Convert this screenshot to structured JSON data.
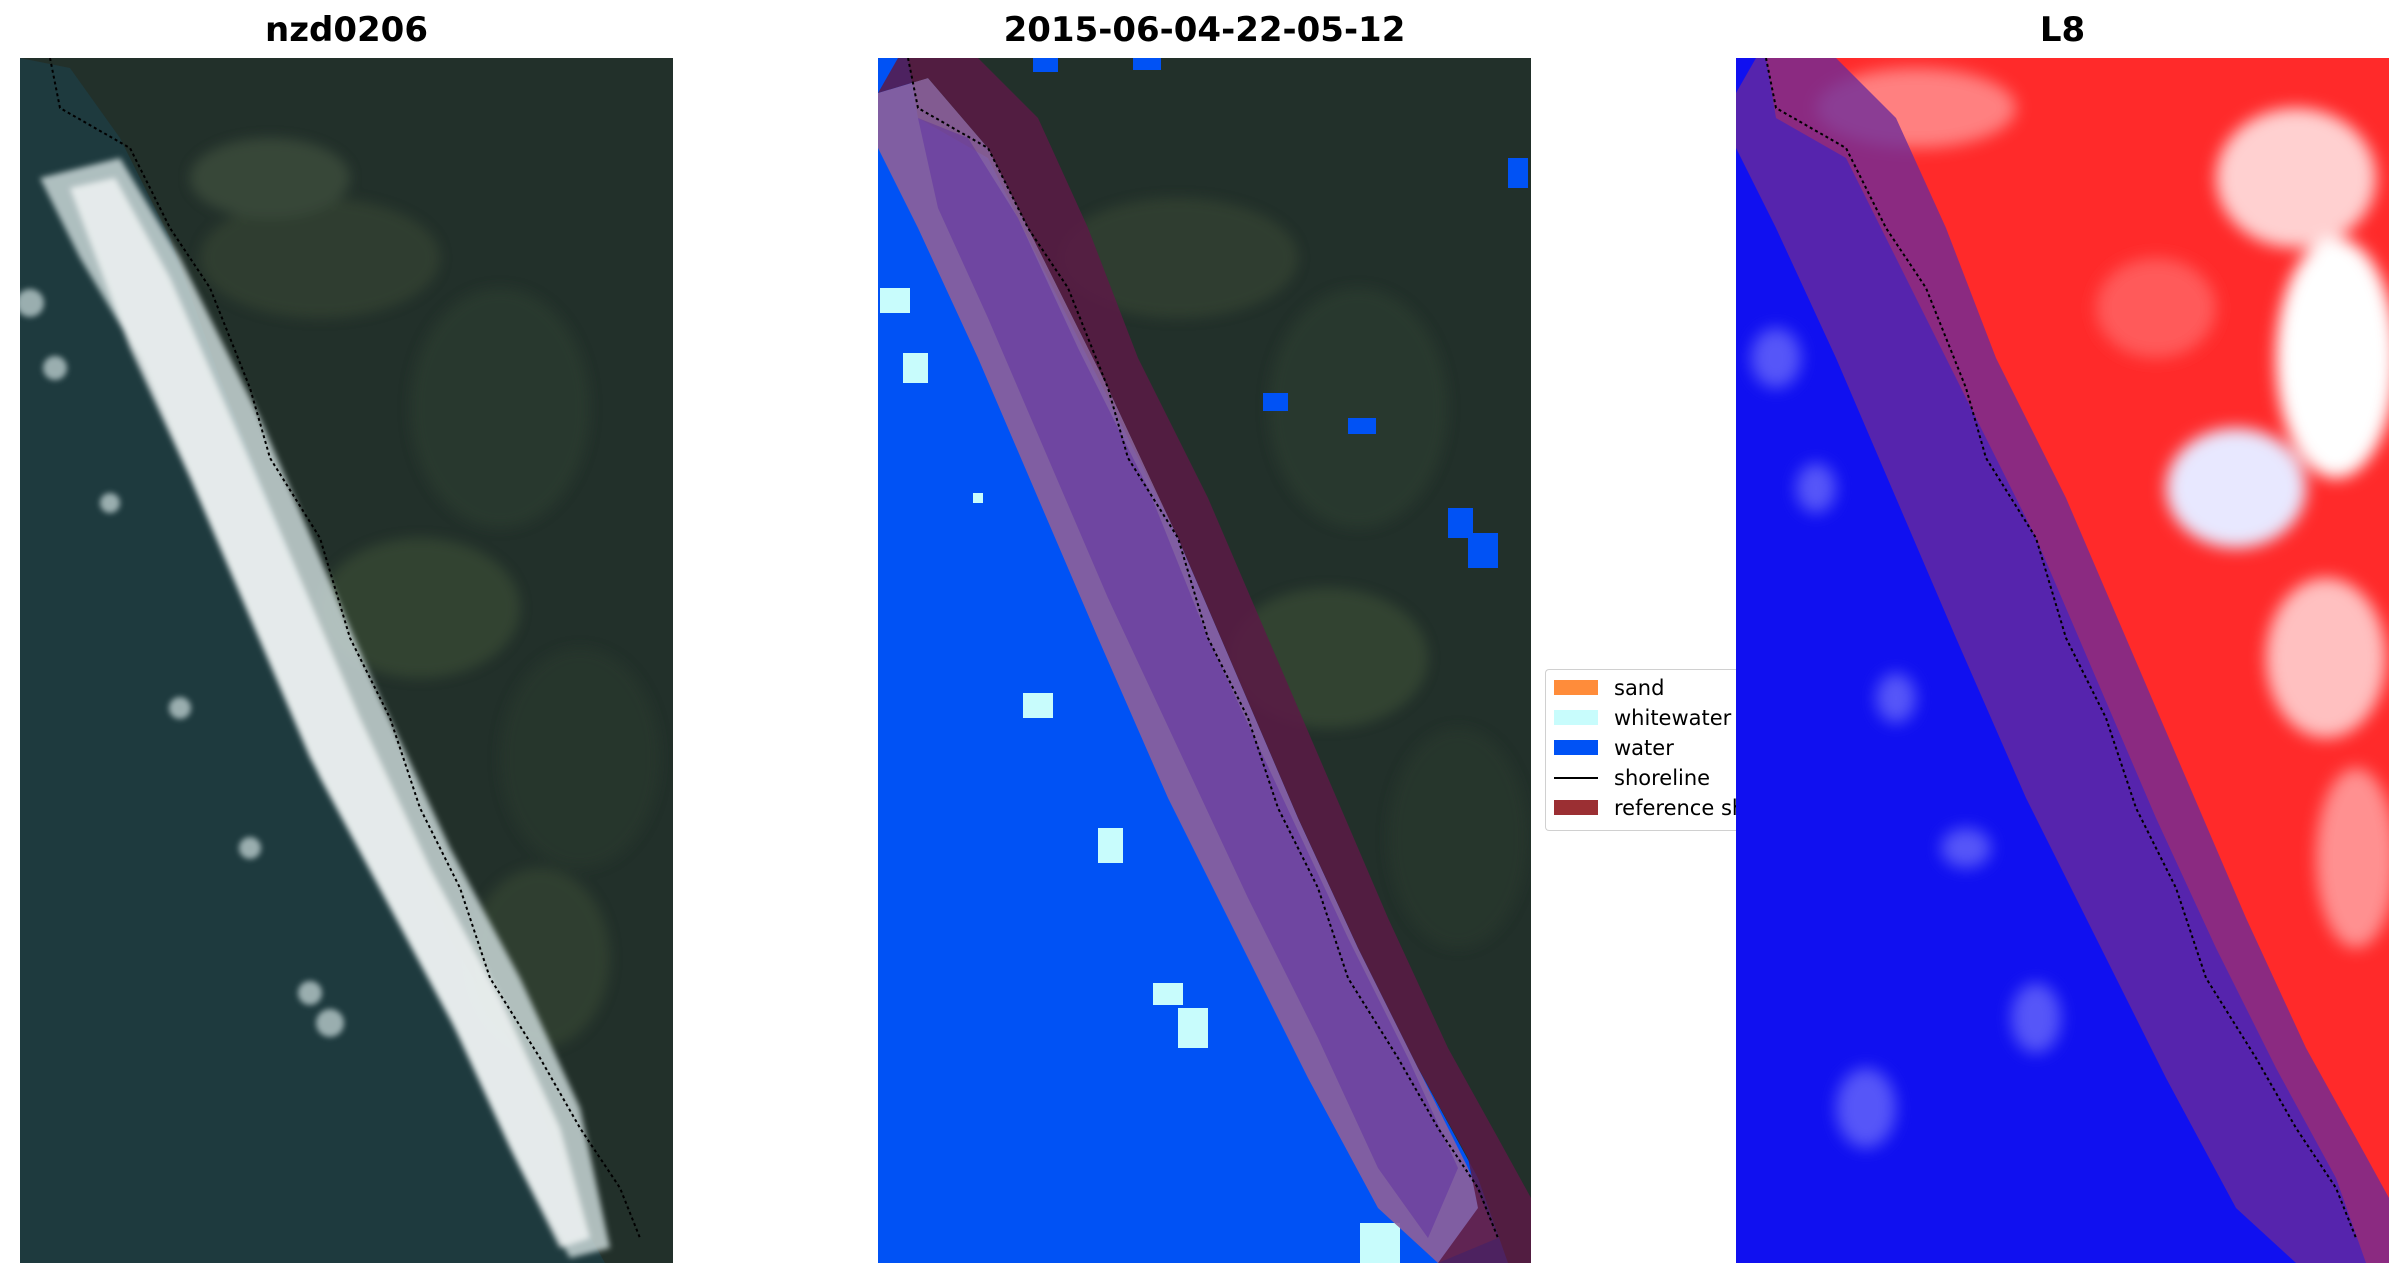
{
  "panels": [
    {
      "title": "nzd0206"
    },
    {
      "title": "2015-06-04-22-05-12"
    },
    {
      "title": "L8"
    }
  ],
  "legend": {
    "items": [
      {
        "label": "sand",
        "color": "#ff8c3a"
      },
      {
        "label": "whitewater",
        "color": "#c8fcfc"
      },
      {
        "label": "water",
        "color": "#0052f5"
      },
      {
        "label": "shoreline",
        "color": "#000000"
      },
      {
        "label": "reference shoreline buffer",
        "color": "#9b2f33"
      }
    ]
  },
  "colors": {
    "water_class": "#0052f5",
    "whitewater_class": "#c8fcfc",
    "buffer_overlay": "#8b1d5a",
    "land_dark": "#1f2d26",
    "index_positive": "#ff2020",
    "index_negative": "#1010f0"
  }
}
